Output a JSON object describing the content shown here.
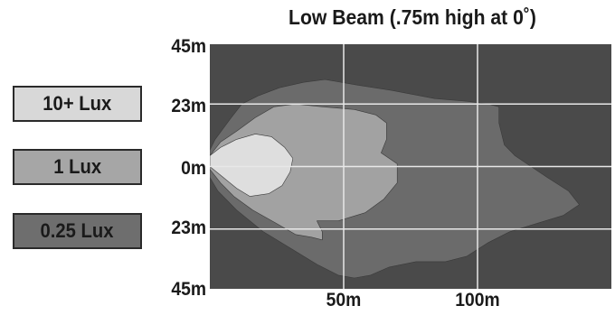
{
  "chart_data": {
    "type": "area",
    "title": "Low Beam (.75m high at 0˚)",
    "x_ticks": [
      {
        "value": 50,
        "label": "50m"
      },
      {
        "value": 100,
        "label": "100m"
      }
    ],
    "y_ticks": [
      {
        "value": 45,
        "label": "45m"
      },
      {
        "value": 23,
        "label": "23m"
      },
      {
        "value": 0,
        "label": "0m"
      },
      {
        "value": -23,
        "label": "23m"
      },
      {
        "value": -45,
        "label": "45m"
      }
    ],
    "xlim": [
      0,
      150
    ],
    "ylim": [
      -45,
      45
    ],
    "grid": true,
    "legend_placement": "left",
    "background_color": "#4a4a4a",
    "grid_color": "#e8e8e8",
    "series": [
      {
        "name": "0.25 Lux",
        "color": "#6b6b6b",
        "points": [
          [
            0,
            6
          ],
          [
            2,
            10
          ],
          [
            8,
            18
          ],
          [
            12,
            23
          ],
          [
            18,
            26
          ],
          [
            26,
            29
          ],
          [
            35,
            31
          ],
          [
            43,
            32
          ],
          [
            55,
            30
          ],
          [
            68,
            28
          ],
          [
            84,
            25
          ],
          [
            96,
            24
          ],
          [
            104,
            23
          ],
          [
            108,
            22
          ],
          [
            108,
            16
          ],
          [
            110,
            8
          ],
          [
            114,
            4
          ],
          [
            120,
            0
          ],
          [
            126,
            -4
          ],
          [
            134,
            -9
          ],
          [
            138,
            -14
          ],
          [
            132,
            -18
          ],
          [
            122,
            -21
          ],
          [
            112,
            -24
          ],
          [
            104,
            -28
          ],
          [
            96,
            -33
          ],
          [
            88,
            -35
          ],
          [
            77,
            -35
          ],
          [
            67,
            -37
          ],
          [
            60,
            -40
          ],
          [
            54,
            -41
          ],
          [
            48,
            -40
          ],
          [
            40,
            -36
          ],
          [
            30,
            -30
          ],
          [
            20,
            -24
          ],
          [
            10,
            -16
          ],
          [
            3,
            -9
          ],
          [
            0,
            -4
          ]
        ]
      },
      {
        "name": "1 Lux",
        "color": "#a2a2a2",
        "points": [
          [
            0,
            4
          ],
          [
            4,
            9
          ],
          [
            10,
            13
          ],
          [
            17,
            18
          ],
          [
            24,
            22
          ],
          [
            32,
            23
          ],
          [
            42,
            22
          ],
          [
            54,
            21
          ],
          [
            62,
            19
          ],
          [
            66,
            16
          ],
          [
            66,
            10
          ],
          [
            64,
            5
          ],
          [
            70,
            1
          ],
          [
            70,
            -6
          ],
          [
            65,
            -12
          ],
          [
            58,
            -17
          ],
          [
            48,
            -20
          ],
          [
            40,
            -20
          ],
          [
            42,
            -24
          ],
          [
            42,
            -27
          ],
          [
            38,
            -26
          ],
          [
            32,
            -25
          ],
          [
            25,
            -21
          ],
          [
            16,
            -16
          ],
          [
            9,
            -11
          ],
          [
            4,
            -6
          ],
          [
            0,
            -1
          ]
        ]
      },
      {
        "name": "10+ Lux",
        "color": "#dedede",
        "points": [
          [
            0,
            4
          ],
          [
            4,
            7
          ],
          [
            10,
            10
          ],
          [
            17,
            12
          ],
          [
            23,
            11
          ],
          [
            28,
            7
          ],
          [
            31,
            3
          ],
          [
            30,
            -2
          ],
          [
            27,
            -7
          ],
          [
            22,
            -10
          ],
          [
            15,
            -11
          ],
          [
            10,
            -8
          ],
          [
            5,
            -4
          ],
          [
            0,
            0
          ]
        ]
      }
    ]
  },
  "legend": [
    {
      "label": "10+ Lux",
      "color": "#d8d8d8"
    },
    {
      "label": "1 Lux",
      "color": "#a6a6a6"
    },
    {
      "label": "0.25 Lux",
      "color": "#6e6e6e"
    }
  ]
}
